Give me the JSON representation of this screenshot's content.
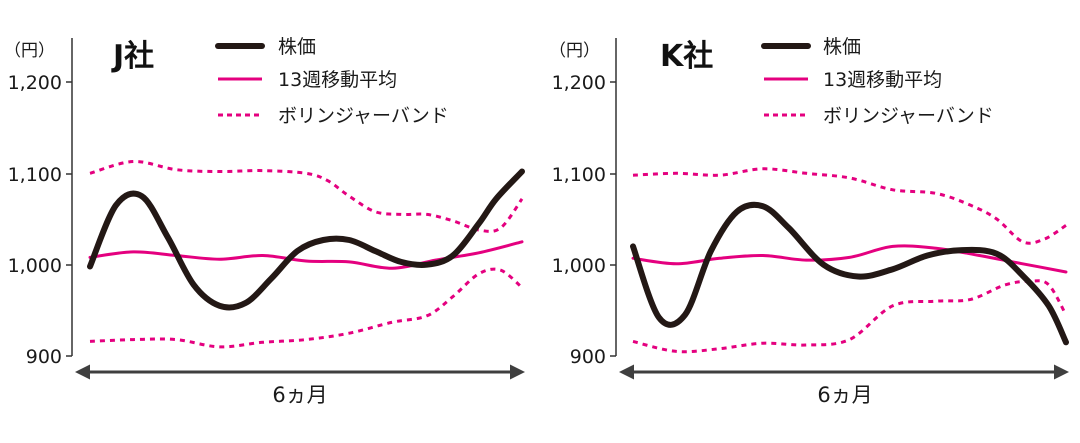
{
  "chart_data": [
    {
      "type": "line",
      "title": "J社",
      "unit": "（円）",
      "ylim": [
        900,
        1200
      ],
      "yticks": [
        900,
        1000,
        1100,
        1200
      ],
      "ytick_labels": [
        "900",
        "1,000",
        "1,100",
        "1,200"
      ],
      "xlabel": "6ヵ月",
      "legend": [
        "株価",
        "13週移動平均",
        "ボリンジャーバンド"
      ],
      "legend_position": "top",
      "grid": false,
      "series": [
        {
          "name": "株価",
          "color": "#231815",
          "style": "solid-thick",
          "x": [
            0,
            0.06,
            0.12,
            0.18,
            0.24,
            0.3,
            0.36,
            0.42,
            0.48,
            0.54,
            0.6,
            0.66,
            0.72,
            0.78,
            0.84,
            0.9,
            0.94,
            1.0
          ],
          "y": [
            998,
            1065,
            1075,
            1030,
            978,
            955,
            958,
            985,
            1015,
            1027,
            1027,
            1015,
            1003,
            1000,
            1010,
            1045,
            1072,
            1102
          ]
        },
        {
          "name": "13週移動平均",
          "color": "#e4007f",
          "style": "solid",
          "x": [
            0,
            0.1,
            0.2,
            0.3,
            0.4,
            0.5,
            0.6,
            0.7,
            0.8,
            0.9,
            1.0
          ],
          "y": [
            1008,
            1014,
            1010,
            1006,
            1010,
            1004,
            1003,
            996,
            1005,
            1013,
            1025
          ]
        },
        {
          "name": "ボリンジャーバンド（上限）",
          "color": "#e4007f",
          "style": "dotted",
          "x": [
            0,
            0.1,
            0.2,
            0.3,
            0.4,
            0.5,
            0.55,
            0.6,
            0.66,
            0.72,
            0.78,
            0.84,
            0.9,
            0.95,
            1.0
          ],
          "y": [
            1100,
            1113,
            1104,
            1102,
            1103,
            1100,
            1092,
            1075,
            1058,
            1055,
            1055,
            1048,
            1038,
            1040,
            1072
          ]
        },
        {
          "name": "ボリンジャーバンド（下限）",
          "color": "#e4007f",
          "style": "dotted",
          "x": [
            0,
            0.1,
            0.2,
            0.3,
            0.4,
            0.5,
            0.6,
            0.7,
            0.78,
            0.84,
            0.9,
            0.95,
            1.0
          ],
          "y": [
            916,
            918,
            918,
            910,
            915,
            918,
            925,
            937,
            944,
            965,
            990,
            994,
            975
          ]
        }
      ]
    },
    {
      "type": "line",
      "title": "K社",
      "unit": "（円）",
      "ylim": [
        900,
        1200
      ],
      "yticks": [
        900,
        1000,
        1100,
        1200
      ],
      "ytick_labels": [
        "900",
        "1,000",
        "1,100",
        "1,200"
      ],
      "xlabel": "6ヵ月",
      "legend": [
        "株価",
        "13週移動平均",
        "ボリンジャーバンド"
      ],
      "legend_position": "top",
      "grid": false,
      "series": [
        {
          "name": "株価",
          "color": "#231815",
          "style": "solid-thick",
          "x": [
            0,
            0.06,
            0.12,
            0.18,
            0.24,
            0.3,
            0.36,
            0.44,
            0.52,
            0.6,
            0.68,
            0.76,
            0.84,
            0.9,
            0.96,
            1.0
          ],
          "y": [
            1020,
            942,
            945,
            1015,
            1058,
            1064,
            1040,
            1000,
            987,
            995,
            1010,
            1016,
            1012,
            988,
            955,
            915
          ]
        },
        {
          "name": "13週移動平均",
          "color": "#e4007f",
          "style": "solid",
          "x": [
            0,
            0.1,
            0.2,
            0.3,
            0.4,
            0.5,
            0.6,
            0.7,
            0.8,
            0.9,
            1.0
          ],
          "y": [
            1007,
            1001,
            1007,
            1010,
            1005,
            1008,
            1020,
            1018,
            1010,
            1001,
            992
          ]
        },
        {
          "name": "ボリンジャーバンド（上限）",
          "color": "#e4007f",
          "style": "dotted",
          "x": [
            0,
            0.1,
            0.2,
            0.3,
            0.4,
            0.5,
            0.6,
            0.7,
            0.78,
            0.84,
            0.9,
            0.95,
            1.0
          ],
          "y": [
            1098,
            1100,
            1098,
            1105,
            1100,
            1095,
            1082,
            1078,
            1065,
            1050,
            1025,
            1028,
            1043
          ]
        },
        {
          "name": "ボリンジャーバンド（下限）",
          "color": "#e4007f",
          "style": "dotted",
          "x": [
            0,
            0.1,
            0.2,
            0.3,
            0.4,
            0.5,
            0.6,
            0.7,
            0.78,
            0.86,
            0.92,
            0.96,
            1.0
          ],
          "y": [
            916,
            905,
            908,
            914,
            912,
            918,
            955,
            960,
            962,
            978,
            982,
            978,
            945
          ]
        }
      ]
    }
  ]
}
